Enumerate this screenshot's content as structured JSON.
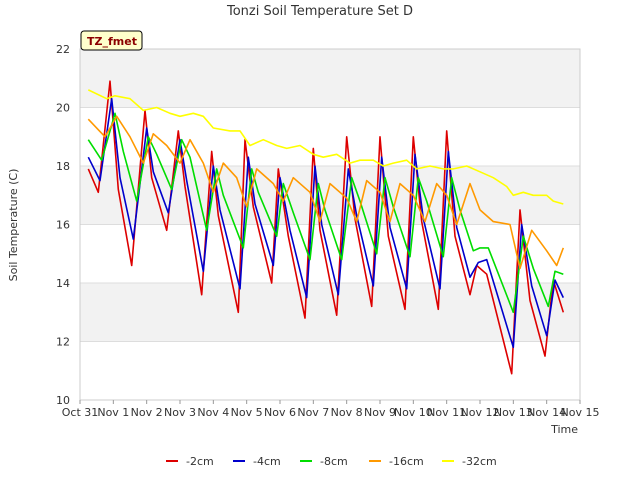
{
  "chart_data": {
    "type": "line",
    "title": "Tonzi Soil Temperature Set D",
    "xlabel": "Time",
    "ylabel": "Soil Temperature (C)",
    "site_label": "TZ_fmet",
    "xlim": [
      0,
      15
    ],
    "ylim": [
      10,
      22
    ],
    "grid": true,
    "legend_position": "bottom",
    "x_ticks": [
      {
        "value": 0,
        "label": "Oct 31"
      },
      {
        "value": 1,
        "label": "Nov 1"
      },
      {
        "value": 2,
        "label": "Nov 2"
      },
      {
        "value": 3,
        "label": "Nov 3"
      },
      {
        "value": 4,
        "label": "Nov 4"
      },
      {
        "value": 5,
        "label": "Nov 5"
      },
      {
        "value": 6,
        "label": "Nov 6"
      },
      {
        "value": 7,
        "label": "Nov 7"
      },
      {
        "value": 8,
        "label": "Nov 8"
      },
      {
        "value": 9,
        "label": "Nov 9"
      },
      {
        "value": 10,
        "label": "Nov 10"
      },
      {
        "value": 11,
        "label": "Nov 11"
      },
      {
        "value": 12,
        "label": "Nov 12"
      },
      {
        "value": 13,
        "label": "Nov 13"
      },
      {
        "value": 14,
        "label": "Nov 14"
      },
      {
        "value": 15,
        "label": "Nov 15"
      }
    ],
    "y_ticks": [
      {
        "value": 10,
        "label": "10"
      },
      {
        "value": 12,
        "label": "12"
      },
      {
        "value": 14,
        "label": "14"
      },
      {
        "value": 16,
        "label": "16"
      },
      {
        "value": 18,
        "label": "18"
      },
      {
        "value": 20,
        "label": "20"
      },
      {
        "value": 22,
        "label": "22"
      }
    ],
    "series": [
      {
        "name": "-2cm",
        "color": "#dd0000",
        "x": [
          0.25,
          0.55,
          0.9,
          1.15,
          1.55,
          1.95,
          2.15,
          2.6,
          2.95,
          3.15,
          3.65,
          3.95,
          4.15,
          4.75,
          4.95,
          5.2,
          5.75,
          5.95,
          6.25,
          6.75,
          7.0,
          7.2,
          7.7,
          8.0,
          8.25,
          8.75,
          9.0,
          9.25,
          9.75,
          10.0,
          10.25,
          10.75,
          11.0,
          11.25,
          11.7,
          11.9,
          12.2,
          12.95,
          13.2,
          13.5,
          13.95,
          14.2,
          14.5
        ],
        "y": [
          17.9,
          17.1,
          20.9,
          17.2,
          14.6,
          19.9,
          17.6,
          15.8,
          19.2,
          17.3,
          13.6,
          18.5,
          16.3,
          13.0,
          18.9,
          16.6,
          14.0,
          17.9,
          15.6,
          12.8,
          18.6,
          15.8,
          12.9,
          19.0,
          16.2,
          13.2,
          19.0,
          15.6,
          13.1,
          19.0,
          16.1,
          13.1,
          19.2,
          15.6,
          13.6,
          14.6,
          14.3,
          10.9,
          16.5,
          13.4,
          11.5,
          14.1,
          13.0
        ]
      },
      {
        "name": "-4cm",
        "color": "#0000cc",
        "x": [
          0.25,
          0.6,
          0.95,
          1.2,
          1.6,
          2.0,
          2.2,
          2.65,
          3.0,
          3.2,
          3.7,
          4.0,
          4.2,
          4.8,
          5.05,
          5.25,
          5.8,
          6.0,
          6.3,
          6.8,
          7.05,
          7.25,
          7.75,
          8.05,
          8.3,
          8.8,
          9.05,
          9.3,
          9.8,
          10.05,
          10.3,
          10.8,
          11.05,
          11.3,
          11.7,
          11.95,
          12.2,
          13.0,
          13.25,
          13.55,
          14.0,
          14.25,
          14.5
        ],
        "y": [
          18.3,
          17.5,
          20.3,
          17.6,
          15.5,
          19.3,
          17.8,
          16.4,
          18.9,
          17.5,
          14.4,
          18.0,
          16.5,
          13.8,
          18.3,
          16.7,
          14.6,
          17.6,
          15.8,
          13.5,
          18.0,
          16.0,
          13.6,
          17.9,
          16.3,
          13.9,
          18.3,
          15.9,
          13.8,
          18.4,
          16.2,
          13.8,
          18.5,
          15.9,
          14.2,
          14.7,
          14.8,
          11.8,
          16.0,
          13.9,
          12.2,
          14.1,
          13.5
        ]
      },
      {
        "name": "-8cm",
        "color": "#00dd00",
        "x": [
          0.25,
          0.65,
          1.05,
          1.3,
          1.7,
          2.05,
          2.3,
          2.75,
          3.05,
          3.3,
          3.8,
          4.1,
          4.3,
          4.9,
          5.15,
          5.35,
          5.9,
          6.1,
          6.4,
          6.9,
          7.15,
          7.35,
          7.85,
          8.15,
          8.4,
          8.9,
          9.15,
          9.4,
          9.9,
          10.15,
          10.4,
          10.9,
          11.15,
          11.4,
          11.8,
          12.0,
          12.25,
          13.0,
          13.3,
          13.6,
          14.05,
          14.25,
          14.5
        ],
        "y": [
          18.9,
          18.2,
          19.8,
          18.5,
          16.8,
          19.0,
          18.4,
          17.2,
          18.9,
          18.3,
          15.8,
          17.9,
          17.0,
          15.2,
          17.9,
          17.1,
          15.6,
          17.4,
          16.4,
          14.8,
          17.4,
          16.5,
          14.8,
          17.6,
          16.8,
          15.0,
          17.6,
          16.6,
          14.9,
          17.6,
          16.8,
          14.9,
          17.6,
          16.5,
          15.1,
          15.2,
          15.2,
          13.0,
          15.6,
          14.5,
          13.2,
          14.4,
          14.3
        ]
      },
      {
        "name": "-16cm",
        "color": "#ff9900",
        "x": [
          0.25,
          0.75,
          1.1,
          1.5,
          1.9,
          2.2,
          2.6,
          3.0,
          3.3,
          3.7,
          4.0,
          4.3,
          4.7,
          5.0,
          5.3,
          5.8,
          6.1,
          6.4,
          6.9,
          7.2,
          7.5,
          8.0,
          8.3,
          8.6,
          9.0,
          9.3,
          9.6,
          10.0,
          10.35,
          10.7,
          11.0,
          11.3,
          11.7,
          12.0,
          12.4,
          12.9,
          13.2,
          13.55,
          14.0,
          14.3,
          14.5
        ],
        "y": [
          19.6,
          19.0,
          19.7,
          19.0,
          18.1,
          19.1,
          18.7,
          18.1,
          18.9,
          18.1,
          17.1,
          18.1,
          17.6,
          16.6,
          17.9,
          17.4,
          16.8,
          17.6,
          17.1,
          16.1,
          17.4,
          16.9,
          16.1,
          17.5,
          17.1,
          16.1,
          17.4,
          17.0,
          16.1,
          17.4,
          17.0,
          16.0,
          17.4,
          16.5,
          16.1,
          16.0,
          14.5,
          15.8,
          15.1,
          14.6,
          15.2
        ]
      },
      {
        "name": "-32cm",
        "color": "#ffff00",
        "x": [
          0.25,
          0.8,
          1.05,
          1.5,
          1.9,
          2.3,
          2.7,
          3.0,
          3.4,
          3.7,
          4.0,
          4.5,
          4.8,
          5.1,
          5.5,
          5.9,
          6.2,
          6.6,
          7.0,
          7.3,
          7.7,
          8.1,
          8.4,
          8.8,
          9.1,
          9.4,
          9.8,
          10.1,
          10.5,
          10.9,
          11.2,
          11.6,
          12.0,
          12.4,
          12.8,
          13.0,
          13.3,
          13.6,
          14.0,
          14.2,
          14.5
        ],
        "y": [
          20.6,
          20.3,
          20.4,
          20.3,
          19.9,
          20.0,
          19.8,
          19.7,
          19.8,
          19.7,
          19.3,
          19.2,
          19.2,
          18.7,
          18.9,
          18.7,
          18.6,
          18.7,
          18.4,
          18.3,
          18.4,
          18.1,
          18.2,
          18.2,
          18.0,
          18.1,
          18.2,
          17.9,
          18.0,
          17.9,
          17.9,
          18.0,
          17.8,
          17.6,
          17.3,
          17.0,
          17.1,
          17.0,
          17.0,
          16.8,
          16.7
        ]
      }
    ]
  }
}
